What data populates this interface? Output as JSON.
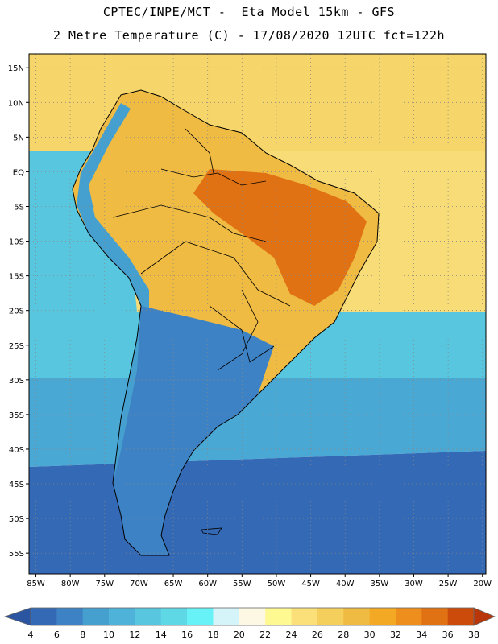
{
  "header": {
    "line1": "CPTEC/INPE/MCT -  Eta Model 15km - GFS",
    "line2": "2 Metre Temperature (C) - 17/08/2020 12UTC fct=122h"
  },
  "axes": {
    "lon_ticks": [
      "85W",
      "80W",
      "75W",
      "70W",
      "65W",
      "60W",
      "55W",
      "50W",
      "45W",
      "40W",
      "35W",
      "30W",
      "25W",
      "20W"
    ],
    "lat_ticks": [
      "15N",
      "10N",
      "5N",
      "EQ",
      "5S",
      "10S",
      "15S",
      "20S",
      "25S",
      "30S",
      "35S",
      "40S",
      "45S",
      "50S",
      "55S"
    ],
    "lon_range": [
      -86,
      -19.5
    ],
    "lat_range": [
      17,
      -58
    ]
  },
  "colorbar": {
    "labels": [
      "4",
      "6",
      "8",
      "10",
      "12",
      "14",
      "16",
      "18",
      "20",
      "22",
      "24",
      "26",
      "28",
      "30",
      "32",
      "34",
      "36",
      "38"
    ],
    "colors": [
      "#3469b5",
      "#3d82c4",
      "#46a0cf",
      "#4fb3d9",
      "#58c6de",
      "#5fd8e6",
      "#66f2f6",
      "#d5f4fa",
      "#fdf8e4",
      "#fff991",
      "#fbe07a",
      "#f5cf5b",
      "#efbb43",
      "#f4a924",
      "#ee8f1d",
      "#e17214",
      "#cc4b0b"
    ],
    "under_color": "#2b55a0",
    "over_color": "#b83607"
  },
  "fields": {
    "ocean_north_color": "#f6d66a",
    "ocean_tropical_color": "#f8dc78",
    "ocean_pacific_color": "#58c6de",
    "ocean_south_color": "#4aa8d4",
    "ocean_far_south_color": "#3469b5",
    "land_amazon_color": "#efbb43",
    "land_hot_color": "#e17214",
    "land_andes_color": "#46a0cf",
    "land_patagonia_color": "#3d82c4"
  }
}
